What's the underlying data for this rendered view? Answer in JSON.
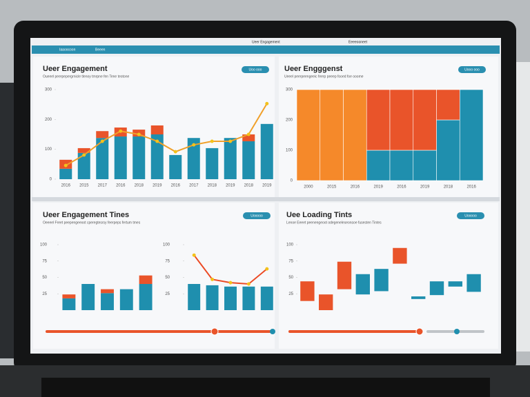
{
  "header": {
    "items": [
      "Iaaoocoon",
      "Beeen",
      "Ueer Engagement",
      "Eeeeooneet"
    ]
  },
  "chart_data": [
    {
      "type": "bar",
      "title": "Ueer Engagement",
      "subtitle": "Oueeel peerpepergrnicle tlenoy tmrpne fen Tene teotone",
      "button": "Uoo ooo",
      "categories": [
        "2016",
        "2015",
        "2017",
        "2016",
        "2018",
        "2019",
        "2016",
        "2017",
        "2018",
        "2019",
        "2018",
        "2019"
      ],
      "series": [
        {
          "color": "#1f8fae",
          "kind": "bar",
          "values": [
            35,
            88,
            138,
            143,
            143,
            150,
            81,
            138,
            104,
            138,
            127,
            185
          ]
        },
        {
          "color": "#e9542a",
          "kind": "bar",
          "values": [
            30,
            16,
            23,
            30,
            23,
            30,
            0,
            0,
            0,
            0,
            23,
            0
          ]
        },
        {
          "color": "#f0a02a",
          "kind": "line",
          "values": [
            46,
            81,
            127,
            161,
            150,
            127,
            92,
            115,
            127,
            127,
            150,
            253
          ]
        }
      ],
      "ylim": [
        0,
        300
      ],
      "yticks": [
        0,
        100,
        200,
        300
      ],
      "grid": false
    },
    {
      "type": "bar",
      "title": "Ueer Engggenst",
      "subtitle": "Ueeel peerpeengeeic feerp peeep fooed foe ooome",
      "button": "Uooo ooo",
      "categories": [
        "2000",
        "2015",
        "2016",
        "2019",
        "2016",
        "2019",
        "2018",
        "2016"
      ],
      "series": [
        {
          "color": "#1f8fae",
          "kind": "bar",
          "values": [
            0,
            0,
            0,
            100,
            100,
            100,
            200,
            300
          ]
        },
        {
          "color": "#f5892a",
          "kind": "bar",
          "values": [
            300,
            300,
            300,
            0,
            0,
            0,
            0,
            0
          ]
        },
        {
          "color": "#e9542a",
          "kind": "bar",
          "values": [
            0,
            0,
            0,
            200,
            200,
            200,
            100,
            0
          ]
        }
      ],
      "ylim": [
        0,
        300
      ],
      "yticks": [
        0,
        100,
        200,
        300
      ],
      "grid": true
    },
    {
      "type": "bar",
      "title": "Ueer Engagement Tines",
      "subtitle": "Oeeeel Freet peepengeeoot cperegtesrsy feerpeps fertum tmes",
      "button": "Uooooo",
      "series": [
        {
          "color": "#1f8fae",
          "kind": "bar",
          "values": [
            18,
            40,
            26,
            32,
            40
          ]
        },
        {
          "color": "#e9542a",
          "kind": "bar",
          "values": [
            6,
            0,
            6,
            0,
            13
          ]
        }
      ],
      "ylim": [
        0,
        100
      ],
      "yticks": [
        25,
        50,
        75,
        100
      ],
      "grid": false
    },
    {
      "type": "bar",
      "series": [
        {
          "color": "#1f8fae",
          "kind": "bar",
          "values": [
            40,
            38,
            36,
            36,
            36
          ]
        },
        {
          "color": "#ec4a24",
          "kind": "line",
          "values": [
            84,
            47,
            42,
            40,
            63
          ]
        }
      ],
      "ylim": [
        0,
        100
      ],
      "yticks": [
        25,
        50,
        75,
        100
      ],
      "grid": false
    },
    {
      "type": "range",
      "title": "Uee Loading Tints",
      "subtitle": "Lenoe Eeeet peenengeoot odegeneleseonsoe fusesten Tintes",
      "button": "Uooooo",
      "lows": [
        14,
        0,
        32,
        24,
        29,
        71,
        17,
        23,
        36,
        28
      ],
      "highs": [
        44,
        24,
        74,
        55,
        63,
        95,
        21,
        44,
        44,
        55
      ],
      "colors": [
        "#e9542a",
        "#e9542a",
        "#e9542a",
        "#1f8fae",
        "#1f8fae",
        "#e9542a",
        "#1f8fae",
        "#1f8fae",
        "#1f8fae",
        "#1f8fae"
      ],
      "ylim": [
        0,
        100
      ],
      "yticks": [
        25,
        50,
        75,
        100
      ],
      "grid": false
    }
  ]
}
